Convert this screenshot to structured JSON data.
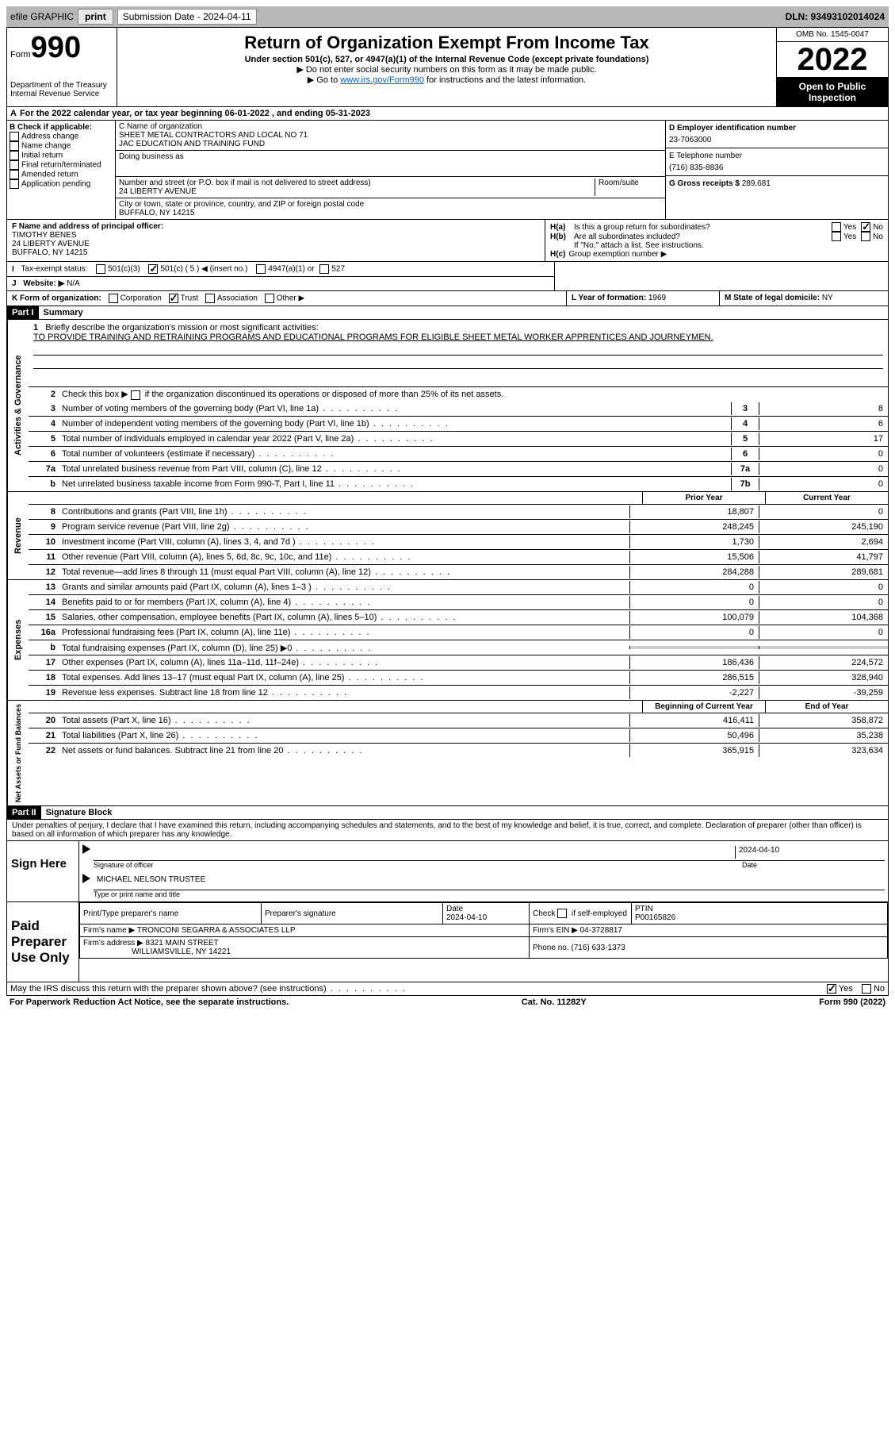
{
  "topbar": {
    "efile": "efile GRAPHIC",
    "print": "print",
    "subdate_label": "Submission Date - 2024-04-11",
    "dln": "DLN: 93493102014024"
  },
  "header": {
    "form_word": "Form",
    "form_num": "990",
    "dept": "Department of the Treasury",
    "irs": "Internal Revenue Service",
    "title": "Return of Organization Exempt From Income Tax",
    "subtitle": "Under section 501(c), 527, or 4947(a)(1) of the Internal Revenue Code (except private foundations)",
    "note1": "▶ Do not enter social security numbers on this form as it may be made public.",
    "note2_pre": "▶ Go to ",
    "note2_link": "www.irs.gov/Form990",
    "note2_post": " for instructions and the latest information.",
    "omb": "OMB No. 1545-0047",
    "year": "2022",
    "open": "Open to Public Inspection"
  },
  "line_a": "For the 2022 calendar year, or tax year beginning 06-01-2022    , and ending 05-31-2023",
  "section_b": {
    "label": "B Check if applicable:",
    "opts": [
      "Address change",
      "Name change",
      "Initial return",
      "Final return/terminated",
      "Amended return",
      "Application pending"
    ]
  },
  "section_c": {
    "name_label": "C Name of organization",
    "name1": "SHEET METAL CONTRACTORS AND LOCAL NO 71",
    "name2": "JAC EDUCATION AND TRAINING FUND",
    "dba_label": "Doing business as",
    "addr_label": "Number and street (or P.O. box if mail is not delivered to street address)",
    "room_label": "Room/suite",
    "addr": "24 LIBERTY AVENUE",
    "city_label": "City or town, state or province, country, and ZIP or foreign postal code",
    "city": "BUFFALO, NY  14215"
  },
  "section_d": {
    "label": "D Employer identification number",
    "ein": "23-7063000"
  },
  "section_e": {
    "label": "E Telephone number",
    "phone": "(716) 835-8836"
  },
  "section_g": {
    "label": "G Gross receipts $",
    "val": "289,681"
  },
  "section_f": {
    "label": "F Name and address of principal officer:",
    "name": "TIMOTHY BENES",
    "addr1": "24 LIBERTY AVENUE",
    "addr2": "BUFFALO, NY  14215"
  },
  "section_h": {
    "a": "Is this a group return for subordinates?",
    "b": "Are all subordinates included?",
    "note": "If \"No,\" attach a list. See instructions.",
    "c": "Group exemption number ▶",
    "yes": "Yes",
    "no": "No"
  },
  "tax_exempt": {
    "label": "Tax-exempt status:",
    "o1": "501(c)(3)",
    "o2": "501(c) ( 5 ) ◀ (insert no.)",
    "o3": "4947(a)(1) or",
    "o4": "527"
  },
  "website": {
    "label": "Website: ▶",
    "val": "N/A"
  },
  "line_k": {
    "label": "K Form of organization:",
    "o1": "Corporation",
    "o2": "Trust",
    "o3": "Association",
    "o4": "Other ▶"
  },
  "line_l": {
    "label": "L Year of formation:",
    "val": "1969"
  },
  "line_m": {
    "label": "M State of legal domicile:",
    "val": "NY"
  },
  "part1": {
    "header": "Part I",
    "title": "Summary",
    "l1_label": "Briefly describe the organization's mission or most significant activities:",
    "l1_text": "TO PROVIDE TRAINING AND RETRAINING PROGRAMS AND EDUCATIONAL PROGRAMS FOR ELIGIBLE SHEET METAL WORKER APPRENTICES AND JOURNEYMEN.",
    "l2": "Check this box ▶        if the organization discontinued its operations or disposed of more than 25% of its net assets.",
    "vert1": "Activities & Governance",
    "vert2": "Revenue",
    "vert3": "Expenses",
    "vert4": "Net Assets or Fund Balances",
    "lines_top": [
      {
        "n": "3",
        "t": "Number of voting members of the governing body (Part VI, line 1a)",
        "b": "3",
        "v": "8"
      },
      {
        "n": "4",
        "t": "Number of independent voting members of the governing body (Part VI, line 1b)",
        "b": "4",
        "v": "6"
      },
      {
        "n": "5",
        "t": "Total number of individuals employed in calendar year 2022 (Part V, line 2a)",
        "b": "5",
        "v": "17"
      },
      {
        "n": "6",
        "t": "Total number of volunteers (estimate if necessary)",
        "b": "6",
        "v": "0"
      },
      {
        "n": "7a",
        "t": "Total unrelated business revenue from Part VIII, column (C), line 12",
        "b": "7a",
        "v": "0"
      },
      {
        "n": "b",
        "t": "Net unrelated business taxable income from Form 990-T, Part I, line 11",
        "b": "7b",
        "v": "0"
      }
    ],
    "col_prior": "Prior Year",
    "col_current": "Current Year",
    "lines_rev": [
      {
        "n": "8",
        "t": "Contributions and grants (Part VIII, line 1h)",
        "p": "18,807",
        "c": "0"
      },
      {
        "n": "9",
        "t": "Program service revenue (Part VIII, line 2g)",
        "p": "248,245",
        "c": "245,190"
      },
      {
        "n": "10",
        "t": "Investment income (Part VIII, column (A), lines 3, 4, and 7d )",
        "p": "1,730",
        "c": "2,694"
      },
      {
        "n": "11",
        "t": "Other revenue (Part VIII, column (A), lines 5, 6d, 8c, 9c, 10c, and 11e)",
        "p": "15,506",
        "c": "41,797"
      },
      {
        "n": "12",
        "t": "Total revenue—add lines 8 through 11 (must equal Part VIII, column (A), line 12)",
        "p": "284,288",
        "c": "289,681"
      }
    ],
    "lines_exp": [
      {
        "n": "13",
        "t": "Grants and similar amounts paid (Part IX, column (A), lines 1–3 )",
        "p": "0",
        "c": "0"
      },
      {
        "n": "14",
        "t": "Benefits paid to or for members (Part IX, column (A), line 4)",
        "p": "0",
        "c": "0"
      },
      {
        "n": "15",
        "t": "Salaries, other compensation, employee benefits (Part IX, column (A), lines 5–10)",
        "p": "100,079",
        "c": "104,368"
      },
      {
        "n": "16a",
        "t": "Professional fundraising fees (Part IX, column (A), line 11e)",
        "p": "0",
        "c": "0"
      },
      {
        "n": "b",
        "t": "Total fundraising expenses (Part IX, column (D), line 25) ▶0",
        "p": "",
        "c": "",
        "shaded": true
      },
      {
        "n": "17",
        "t": "Other expenses (Part IX, column (A), lines 11a–11d, 11f–24e)",
        "p": "186,436",
        "c": "224,572"
      },
      {
        "n": "18",
        "t": "Total expenses. Add lines 13–17 (must equal Part IX, column (A), line 25)",
        "p": "286,515",
        "c": "328,940"
      },
      {
        "n": "19",
        "t": "Revenue less expenses. Subtract line 18 from line 12",
        "p": "-2,227",
        "c": "-39,259"
      }
    ],
    "col_beg": "Beginning of Current Year",
    "col_end": "End of Year",
    "lines_net": [
      {
        "n": "20",
        "t": "Total assets (Part X, line 16)",
        "p": "416,411",
        "c": "358,872"
      },
      {
        "n": "21",
        "t": "Total liabilities (Part X, line 26)",
        "p": "50,496",
        "c": "35,238"
      },
      {
        "n": "22",
        "t": "Net assets or fund balances. Subtract line 21 from line 20",
        "p": "365,915",
        "c": "323,634"
      }
    ]
  },
  "part2": {
    "header": "Part II",
    "title": "Signature Block",
    "perjury": "Under penalties of perjury, I declare that I have examined this return, including accompanying schedules and statements, and to the best of my knowledge and belief, it is true, correct, and complete. Declaration of preparer (other than officer) is based on all information of which preparer has any knowledge.",
    "sign_here": "Sign Here",
    "sig_officer": "Signature of officer",
    "sig_date": "2024-04-10",
    "date_label": "Date",
    "officer_name": "MICHAEL NELSON TRUSTEE",
    "type_label": "Type or print name and title",
    "paid": "Paid Preparer Use Only",
    "prep_name_label": "Print/Type preparer's name",
    "prep_sig_label": "Preparer's signature",
    "prep_date": "2024-04-10",
    "check_self": "Check         if self-employed",
    "ptin_label": "PTIN",
    "ptin": "P00165826",
    "firm_name_label": "Firm's name    ▶",
    "firm_name": "TRONCONI SEGARRA & ASSOCIATES LLP",
    "firm_ein_label": "Firm's EIN ▶",
    "firm_ein": "04-3728817",
    "firm_addr_label": "Firm's address ▶",
    "firm_addr1": "8321 MAIN STREET",
    "firm_addr2": "WILLIAMSVILLE, NY  14221",
    "firm_phone_label": "Phone no.",
    "firm_phone": "(716) 633-1373",
    "discuss": "May the IRS discuss this return with the preparer shown above? (see instructions)",
    "yes": "Yes",
    "no": "No"
  },
  "footer": {
    "paperwork": "For Paperwork Reduction Act Notice, see the separate instructions.",
    "cat": "Cat. No. 11282Y",
    "form": "Form 990 (2022)"
  }
}
